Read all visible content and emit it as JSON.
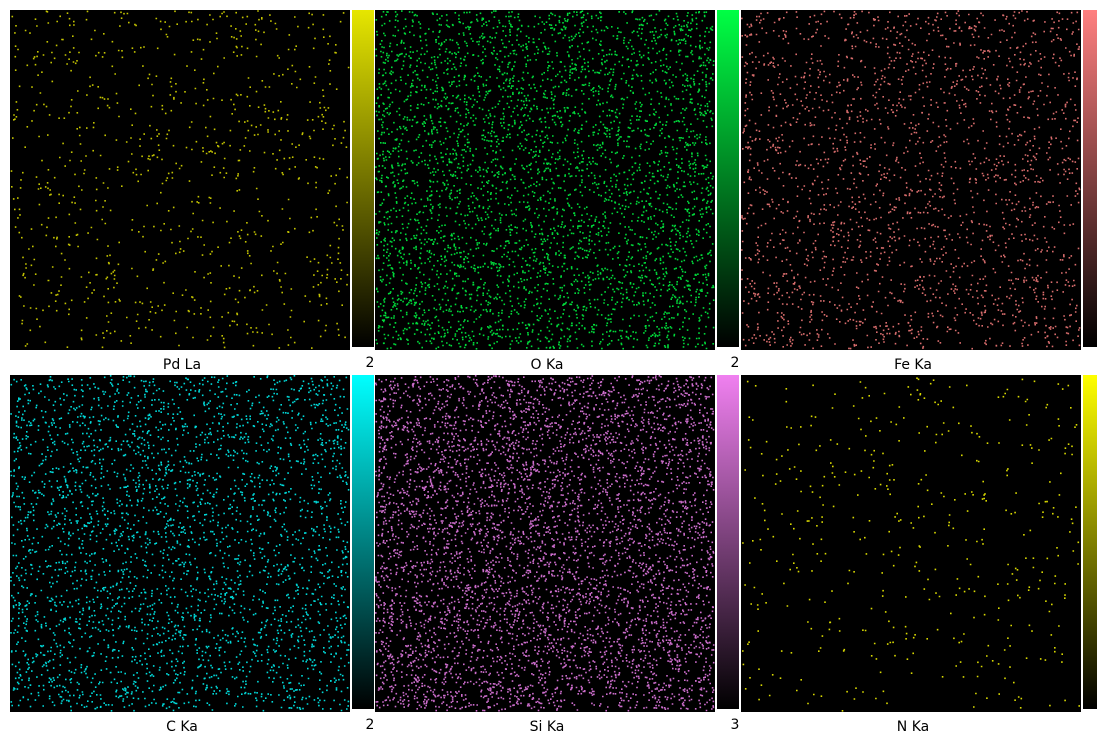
{
  "panels": [
    {
      "label": "Pd La",
      "max": "2",
      "color": "#e6e600"
    },
    {
      "label": "O  Ka",
      "max": "2",
      "color": "#00ff44"
    },
    {
      "label": "Fe Ka",
      "color": "#ff8080"
    },
    {
      "label": "C  Ka",
      "max": "2",
      "color": "#00ffff"
    },
    {
      "label": "Si Ka",
      "max": "3",
      "color": "#f080f0"
    },
    {
      "label": "N  Ka",
      "color": "#ffff00"
    }
  ]
}
